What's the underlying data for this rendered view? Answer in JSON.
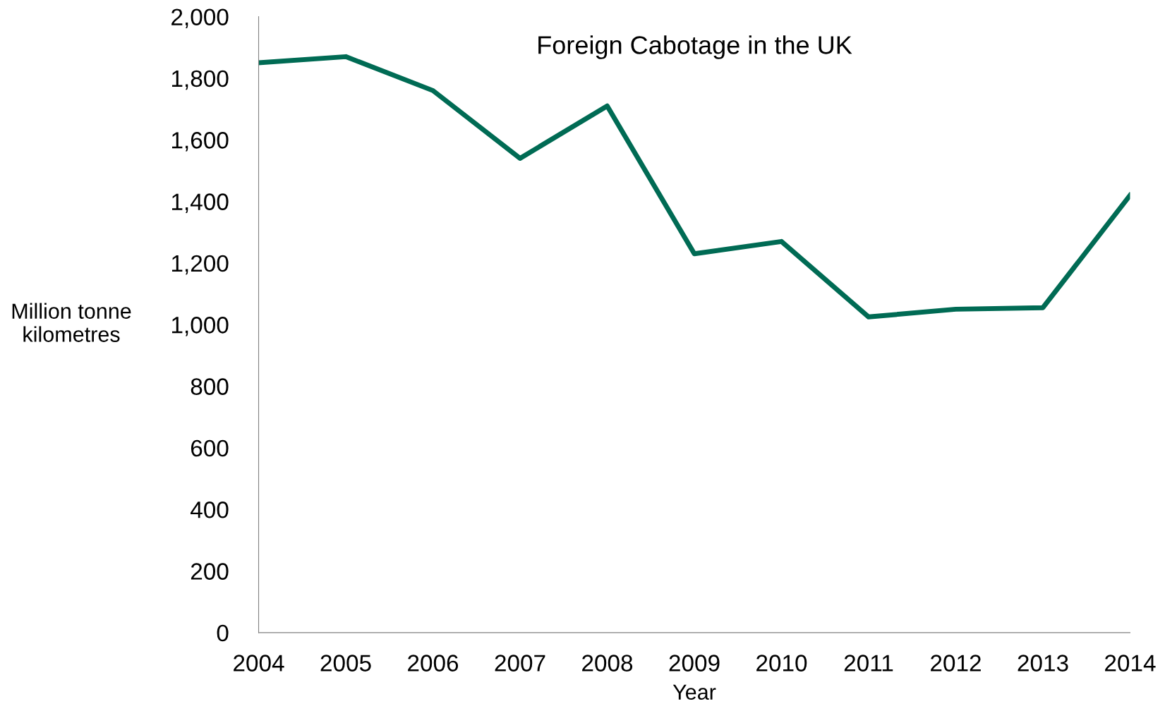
{
  "chart_data": {
    "type": "line",
    "title": "Foreign Cabotage in the UK",
    "xlabel": "Year",
    "ylabel": "Million tonne\nkilometres",
    "categories": [
      "2004",
      "2005",
      "2006",
      "2007",
      "2008",
      "2009",
      "2010",
      "2011",
      "2012",
      "2013",
      "2014"
    ],
    "series": [
      {
        "color": "#006b54",
        "values": [
          1850,
          1870,
          1760,
          1540,
          1710,
          1230,
          1270,
          1025,
          1050,
          1055,
          1420
        ]
      }
    ],
    "ylim": [
      0,
      2000
    ],
    "yticks": [
      {
        "value": 0,
        "label": "0"
      },
      {
        "value": 200,
        "label": "200"
      },
      {
        "value": 400,
        "label": "400"
      },
      {
        "value": 600,
        "label": "600"
      },
      {
        "value": 800,
        "label": "800"
      },
      {
        "value": 1000,
        "label": "1,000"
      },
      {
        "value": 1200,
        "label": "1,200"
      },
      {
        "value": 1400,
        "label": "1,400"
      },
      {
        "value": 1600,
        "label": "1,600"
      },
      {
        "value": 1800,
        "label": "1,800"
      },
      {
        "value": 2000,
        "label": "2,000"
      }
    ],
    "grid": false,
    "legend": false,
    "marker": "none",
    "line_style": "solid"
  }
}
